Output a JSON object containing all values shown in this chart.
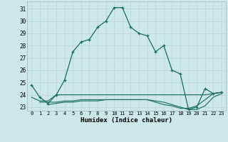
{
  "xlabel": "Humidex (Indice chaleur)",
  "xlim": [
    -0.5,
    23.5
  ],
  "ylim": [
    22.7,
    31.6
  ],
  "yticks": [
    23,
    24,
    25,
    26,
    27,
    28,
    29,
    30,
    31
  ],
  "xticks": [
    0,
    1,
    2,
    3,
    4,
    5,
    6,
    7,
    8,
    9,
    10,
    11,
    12,
    13,
    14,
    15,
    16,
    17,
    18,
    19,
    20,
    21,
    22,
    23
  ],
  "bg_color": "#cce8e8",
  "grid_color": "#b8d4d4",
  "line_color": "#1a6b60",
  "line1_x": [
    0,
    1,
    2,
    3,
    4,
    5,
    6,
    7,
    8,
    9,
    10,
    11,
    12,
    13,
    14,
    15,
    16,
    17,
    18,
    19,
    20,
    21,
    22,
    23
  ],
  "line1_y": [
    24.8,
    23.8,
    23.3,
    24.0,
    25.2,
    27.5,
    28.3,
    28.5,
    29.5,
    30.0,
    31.1,
    31.1,
    29.5,
    29.0,
    28.8,
    27.5,
    28.0,
    26.0,
    25.7,
    22.8,
    23.0,
    24.5,
    24.1,
    24.2
  ],
  "line2_x": [
    0,
    1,
    2,
    3,
    4,
    5,
    6,
    7,
    8,
    9,
    10,
    11,
    12,
    13,
    14,
    15,
    16,
    17,
    18,
    19,
    20,
    21,
    22,
    23
  ],
  "line2_y": [
    23.8,
    23.5,
    23.5,
    24.0,
    24.0,
    24.0,
    24.0,
    24.0,
    24.0,
    24.0,
    24.0,
    24.0,
    24.0,
    24.0,
    24.0,
    24.0,
    24.0,
    24.0,
    24.0,
    24.0,
    24.0,
    24.0,
    24.1,
    24.2
  ],
  "line3_x": [
    1,
    2,
    3,
    4,
    5,
    6,
    7,
    8,
    9,
    10,
    11,
    12,
    13,
    14,
    15,
    16,
    17,
    18,
    19,
    20,
    21,
    22,
    23
  ],
  "line3_y": [
    23.4,
    23.4,
    23.4,
    23.5,
    23.5,
    23.6,
    23.6,
    23.6,
    23.6,
    23.6,
    23.6,
    23.6,
    23.6,
    23.6,
    23.4,
    23.2,
    23.1,
    22.9,
    22.9,
    23.1,
    23.6,
    24.1,
    24.2
  ],
  "line4_x": [
    2,
    3,
    4,
    5,
    6,
    7,
    8,
    9,
    10,
    11,
    12,
    13,
    14,
    15,
    16,
    17,
    18,
    19,
    20,
    21,
    22,
    23
  ],
  "line4_y": [
    23.2,
    23.3,
    23.4,
    23.4,
    23.5,
    23.5,
    23.5,
    23.6,
    23.6,
    23.6,
    23.6,
    23.6,
    23.6,
    23.5,
    23.4,
    23.2,
    23.0,
    22.8,
    22.8,
    23.1,
    23.8,
    24.1
  ]
}
